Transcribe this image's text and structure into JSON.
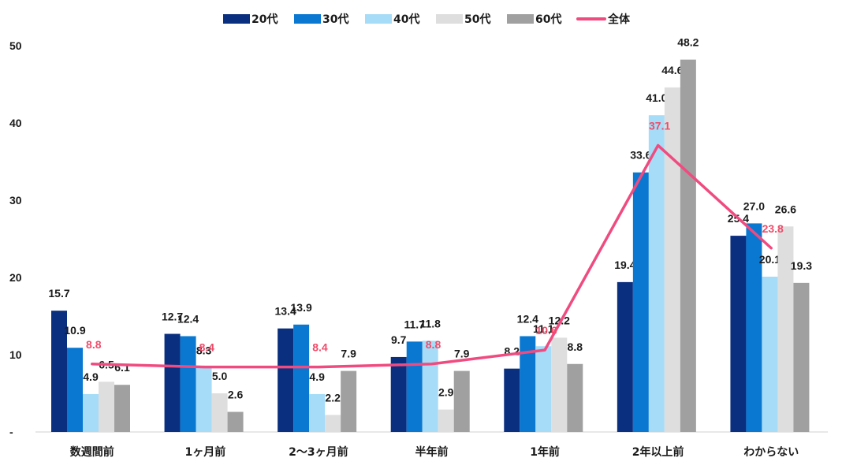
{
  "chart_data": {
    "type": "bar",
    "categories": [
      "数週間前",
      "1ヶ月前",
      "2〜3ヶ月前",
      "半年前",
      "1年前",
      "2年以上前",
      "わからない"
    ],
    "series": [
      {
        "name": "20代",
        "color": "#0b2f7f",
        "values": [
          15.7,
          12.7,
          13.4,
          9.7,
          8.2,
          19.4,
          25.4
        ]
      },
      {
        "name": "30代",
        "color": "#0a78d1",
        "values": [
          10.9,
          12.4,
          13.9,
          11.7,
          12.4,
          33.6,
          27.0
        ]
      },
      {
        "name": "40代",
        "color": "#a6dcf7",
        "values": [
          4.9,
          8.3,
          4.9,
          11.8,
          11.1,
          41.0,
          20.1
        ]
      },
      {
        "name": "50代",
        "color": "#dedede",
        "values": [
          6.5,
          5.0,
          2.2,
          2.9,
          12.2,
          44.6,
          26.6
        ]
      },
      {
        "name": "60代",
        "color": "#a0a0a0",
        "values": [
          6.1,
          2.6,
          7.9,
          7.9,
          8.8,
          48.2,
          19.3
        ]
      }
    ],
    "line_series": {
      "name": "全体",
      "type": "line",
      "color": "#f04b80",
      "label_color": "#f04b69",
      "values": [
        8.8,
        8.4,
        8.4,
        8.8,
        10.6,
        37.1,
        23.8
      ]
    },
    "y_ticks": [
      "-",
      "10",
      "20",
      "30",
      "40",
      "50"
    ],
    "ylim": [
      0,
      50
    ],
    "grid": false,
    "legend": "top-center",
    "title": "",
    "xlabel": "",
    "ylabel": ""
  }
}
